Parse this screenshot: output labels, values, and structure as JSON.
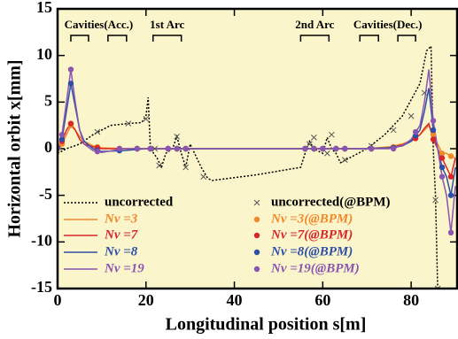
{
  "chart_data": {
    "type": "line",
    "xlabel": "Longitudinal position s[m]",
    "ylabel": "Horizontal orbit x[mm]",
    "xlim": [
      0,
      90.4
    ],
    "ylim": [
      -15,
      15
    ],
    "xticks": [
      0,
      20,
      40,
      60,
      80
    ],
    "yticks": [
      -15,
      -10,
      -5,
      0,
      5,
      10,
      15
    ],
    "annotations": [
      {
        "text": "Cavities(Acc.)",
        "spans": [
          [
            3,
            7
          ],
          [
            11.4,
            15.6
          ]
        ]
      },
      {
        "text": "1st Arc",
        "spans": [
          [
            21.6,
            28
          ]
        ]
      },
      {
        "text": "2nd Arc",
        "spans": [
          [
            55,
            61.4
          ]
        ]
      },
      {
        "text": "Cavities(Dec.)",
        "spans": [
          [
            68.4,
            72.6
          ],
          [
            77,
            81
          ]
        ]
      }
    ],
    "series": [
      {
        "name": "uncorrected",
        "color": "#000000",
        "marker": "line",
        "dash": "dotted",
        "x": [
          0,
          2,
          5,
          8,
          10,
          12,
          16,
          19,
          20,
          20.5,
          21,
          22.5,
          23.5,
          24.5,
          26,
          27,
          28,
          29,
          30,
          31,
          32.5,
          34,
          35,
          45,
          55,
          56,
          57,
          58,
          60,
          61,
          62,
          63,
          64,
          66,
          70,
          74,
          78,
          82,
          83.5,
          84.5,
          85,
          85.5,
          86
        ],
        "values": [
          -0.5,
          0,
          0.5,
          1.5,
          2,
          2.5,
          2.7,
          2.8,
          3.5,
          5.5,
          0,
          -1,
          -2,
          -0.5,
          0,
          1.3,
          -0.5,
          -2,
          0.5,
          -0.5,
          -2,
          -3.2,
          -3.4,
          -2.8,
          -2,
          -0.5,
          0.8,
          0,
          -0.5,
          1.2,
          0,
          -0.5,
          -1.5,
          -1,
          0,
          1.5,
          3.5,
          7,
          10.5,
          11,
          0,
          -5,
          -15
        ]
      },
      {
        "name": "Nν =3",
        "color": "#f0882a",
        "marker": "line",
        "x": [
          0,
          1,
          2,
          3,
          4,
          5,
          6,
          8,
          10,
          15,
          20,
          25,
          30,
          40,
          50,
          60,
          70,
          75,
          78,
          80,
          82,
          83,
          84,
          85,
          86,
          87,
          88,
          89,
          90
        ],
        "values": [
          -0.5,
          0.5,
          1.5,
          2.5,
          2,
          1.3,
          0.8,
          0.3,
          0.1,
          0,
          0,
          0,
          0,
          0,
          0,
          0,
          0,
          0.2,
          0.5,
          0.9,
          1.5,
          2,
          2.5,
          1.5,
          0.5,
          -0.5,
          -0.5,
          -0.8,
          -1
        ]
      },
      {
        "name": "Nν =7",
        "color": "#d8262a",
        "marker": "line",
        "x": [
          0,
          1,
          2,
          3,
          4,
          5,
          6,
          8,
          10,
          15,
          20,
          25,
          30,
          40,
          50,
          60,
          70,
          75,
          78,
          80,
          82,
          83,
          84,
          85,
          86,
          87,
          88,
          89,
          90
        ],
        "values": [
          -0.3,
          0.8,
          2,
          2.7,
          2,
          1,
          0.5,
          0.2,
          0,
          0,
          0,
          0,
          0,
          0,
          0,
          0,
          0,
          0.1,
          0.4,
          0.8,
          1.5,
          2.2,
          2.7,
          1,
          0,
          -1,
          -2,
          -3,
          -1
        ]
      },
      {
        "name": "Nν =8",
        "color": "#2e4fa8",
        "marker": "line",
        "x": [
          0,
          1,
          2,
          3,
          4,
          5,
          6,
          8,
          10,
          15,
          20,
          25,
          30,
          40,
          50,
          60,
          70,
          75,
          78,
          80,
          82,
          83,
          84,
          85,
          86,
          87,
          88,
          89,
          90
        ],
        "values": [
          -0.5,
          1,
          4,
          7,
          4.5,
          2,
          0.8,
          0,
          -0.3,
          -0.2,
          0,
          0,
          0,
          0,
          0,
          0,
          0,
          0.1,
          0.3,
          0.8,
          2,
          4,
          6.5,
          2,
          0,
          -2,
          -3,
          -5,
          -2
        ]
      },
      {
        "name": "Nν =19",
        "color": "#8a55b0",
        "marker": "line",
        "x": [
          0,
          1,
          2,
          3,
          4,
          5,
          6,
          8,
          10,
          15,
          20,
          25,
          30,
          40,
          50,
          60,
          70,
          75,
          78,
          80,
          82,
          83,
          84,
          85,
          86,
          87,
          88,
          89,
          90
        ],
        "values": [
          -0.3,
          1.5,
          5,
          8.5,
          5,
          2,
          0.5,
          -0.2,
          -0.4,
          0,
          0,
          0,
          0,
          0,
          0,
          0,
          0,
          0,
          0.3,
          1,
          2.5,
          5,
          8.5,
          3,
          0,
          -3,
          -5,
          -9,
          -4
        ]
      },
      {
        "name": "uncorrected(@BPM)",
        "color": "#000000",
        "marker": "x",
        "x": [
          9,
          16,
          20,
          22,
          23,
          27,
          29,
          33,
          57,
          58,
          61,
          62,
          65,
          71,
          76,
          80,
          83,
          85.5,
          86
        ],
        "values": [
          1.8,
          2.7,
          3.2,
          0,
          -1.8,
          1.3,
          -2,
          -3,
          0.5,
          1.2,
          -0.5,
          1.5,
          -1.2,
          0.3,
          2,
          3.5,
          6,
          -5.5,
          -15
        ]
      },
      {
        "name": "Nν =3(@BPM)",
        "color": "#f0882a",
        "marker": "dot",
        "x": [
          1,
          3,
          9,
          14,
          18,
          21,
          25,
          27,
          29,
          56,
          58,
          60,
          63,
          65,
          71,
          76,
          81,
          85,
          87,
          89
        ],
        "values": [
          0.5,
          2.5,
          0.2,
          0,
          0,
          0,
          0,
          0,
          0,
          0,
          0,
          0,
          0,
          0,
          0,
          0.2,
          1.2,
          1.5,
          -0.5,
          -0.8
        ]
      },
      {
        "name": "Nν =7(@BPM)",
        "color": "#d8262a",
        "marker": "dot",
        "x": [
          1,
          3,
          9,
          14,
          18,
          21,
          25,
          27,
          29,
          56,
          58,
          60,
          63,
          65,
          71,
          76,
          81,
          85,
          87,
          89
        ],
        "values": [
          0.8,
          2.7,
          0.1,
          0,
          0,
          0,
          0,
          0,
          0,
          0,
          0,
          0,
          0,
          0,
          0,
          0.1,
          1.1,
          1,
          -1,
          -3
        ]
      },
      {
        "name": "Nν =8(@BPM)",
        "color": "#2e4fa8",
        "marker": "dot",
        "x": [
          1,
          3,
          9,
          14,
          18,
          21,
          25,
          27,
          29,
          56,
          58,
          60,
          63,
          65,
          71,
          76,
          81,
          85,
          87,
          89
        ],
        "values": [
          1,
          7,
          -0.2,
          -0.2,
          0,
          0,
          0,
          0,
          0,
          0,
          0,
          0,
          0,
          0,
          0,
          0.1,
          1.4,
          2,
          -2,
          -5
        ]
      },
      {
        "name": "Nν =19(@BPM)",
        "color": "#8a55b0",
        "marker": "dot",
        "x": [
          1,
          3,
          9,
          14,
          18,
          21,
          25,
          27,
          29,
          56,
          58,
          60,
          63,
          65,
          71,
          76,
          81,
          85,
          87,
          89
        ],
        "values": [
          1.5,
          8.5,
          -0.3,
          0,
          0,
          0,
          0,
          0,
          0,
          0,
          0,
          0,
          0,
          0,
          0,
          0,
          1.8,
          3,
          -3,
          -9
        ]
      }
    ]
  }
}
